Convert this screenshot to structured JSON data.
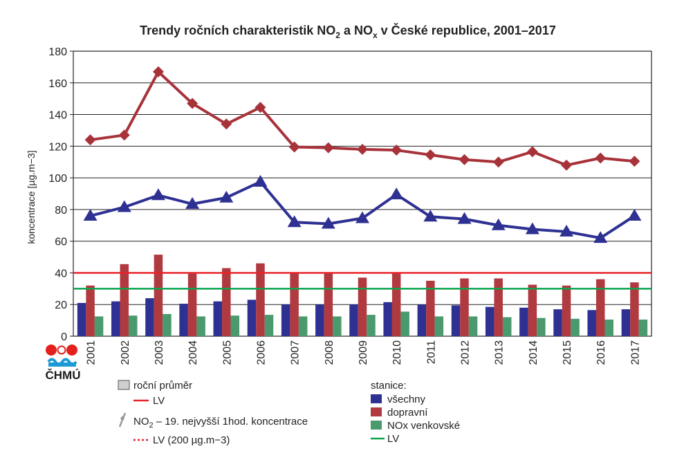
{
  "chart_data": {
    "type": "bar",
    "title": {
      "main": "Trendy ročních charakteristik NO",
      "sub1": "2",
      "mid": " a NO",
      "sub2": "x",
      "tail": " v České republice, 2001–2017"
    },
    "ylabel": "koncentrace [µg.m−3]",
    "ylim": [
      0,
      180
    ],
    "yticks": [
      0,
      20,
      40,
      60,
      80,
      100,
      120,
      140,
      160,
      180
    ],
    "grid": true,
    "categories": [
      "2001",
      "2002",
      "2003",
      "2004",
      "2005",
      "2006",
      "2007",
      "2008",
      "2009",
      "2010",
      "2011",
      "2012",
      "2013",
      "2014",
      "2015",
      "2016",
      "2017"
    ],
    "bar_series": [
      {
        "name": "všechny",
        "color": "#2e3192",
        "values": [
          21,
          22,
          24,
          20.5,
          22,
          23,
          20,
          20,
          20,
          21.5,
          20,
          19.5,
          18.5,
          18,
          17,
          16.5,
          17
        ]
      },
      {
        "name": "dopravní",
        "color": "#b03a40",
        "values": [
          32,
          45.5,
          51.5,
          39.5,
          43,
          46,
          40,
          40,
          37,
          40,
          35,
          36.5,
          36.5,
          32.5,
          32,
          36,
          34
        ]
      },
      {
        "name": "NOx venkovské",
        "color": "#4a9a6e",
        "values": [
          12.5,
          13,
          14,
          12.5,
          13,
          13.5,
          12.5,
          12.5,
          13.5,
          15.5,
          12.5,
          12.5,
          12,
          11.5,
          11,
          10.5,
          10.5
        ]
      }
    ],
    "line_series": [
      {
        "name": "dopravní",
        "color": "#a8323a",
        "marker": "diamond",
        "values": [
          124,
          127,
          167,
          147,
          134,
          144.5,
          119.5,
          119,
          118,
          117.5,
          114.5,
          111.5,
          110,
          116.5,
          108,
          112.5,
          110.5
        ]
      },
      {
        "name": "všechny",
        "color": "#2e3192",
        "marker": "triangle",
        "values": [
          76,
          81.5,
          89,
          83.5,
          87.5,
          97.5,
          72,
          71,
          74.5,
          89.5,
          75.5,
          74,
          70,
          67.5,
          66,
          62,
          76
        ]
      }
    ],
    "reference_lines": [
      {
        "name": "LV",
        "value": 40,
        "color": "#e8232a"
      },
      {
        "name": "LV",
        "value": 30,
        "color": "#0aa54f"
      }
    ]
  },
  "legend": {
    "annual_mean": "roční průměr",
    "lv_red": "LV",
    "no2_prefix": "NO",
    "no2_sub": "2",
    "no2_rest": " – 19. nejvyšší 1hod. koncentrace",
    "lv_200": "LV (200 µg.m−3)",
    "stations_title": "stanice:",
    "s_all": "všechny",
    "s_traffic": "dopravní",
    "s_rural": "NOx venkovské",
    "lv_green": "LV"
  },
  "logo": {
    "text": "ČHMÚ"
  }
}
